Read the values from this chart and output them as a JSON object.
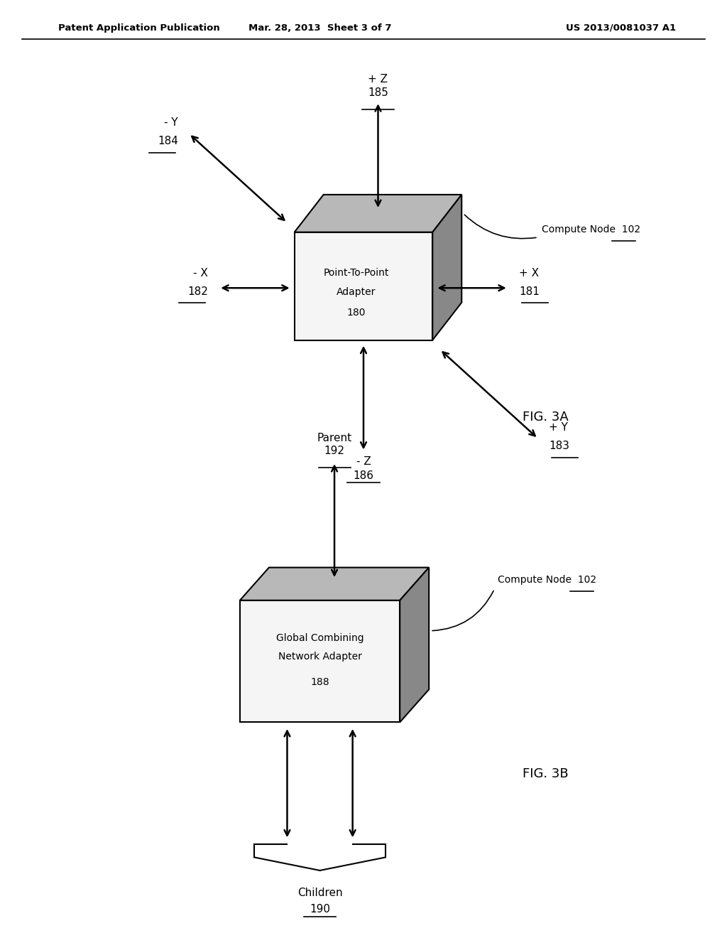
{
  "bg_color": "#ffffff",
  "header_left": "Patent Application Publication",
  "header_mid": "Mar. 28, 2013  Sheet 3 of 7",
  "header_right": "US 2013/0081037 A1",
  "top_color": "#b8b8b8",
  "side_color": "#888888",
  "face_color": "#f5f5f5",
  "fig3a": {
    "label": "FIG. 3A",
    "bx": 0.5,
    "by": 0.695,
    "bw": 0.19,
    "bh": 0.115,
    "ox": 0.04,
    "oy": 0.04,
    "box_line1": "Point-To-Point",
    "box_line2": "Adapter",
    "box_num": "180",
    "compute_node_label": "Compute Node",
    "compute_node_num": "102",
    "pZ_label": "+ Z",
    "pZ_num": "185",
    "mZ_label": "- Z",
    "mZ_num": "186",
    "pX_label": "+ X",
    "pX_num": "181",
    "mX_label": "- X",
    "mX_num": "182",
    "pY_label": "+ Y",
    "pY_num": "183",
    "mY_label": "- Y",
    "mY_num": "184"
  },
  "fig3b": {
    "label": "FIG. 3B",
    "bx": 0.44,
    "by": 0.295,
    "bw": 0.22,
    "bh": 0.13,
    "ox": 0.04,
    "oy": 0.035,
    "box_line1": "Global Combining",
    "box_line2": "Network Adapter",
    "box_num": "188",
    "compute_node_label": "Compute Node",
    "compute_node_num": "102",
    "parent_label": "Parent",
    "parent_num": "192",
    "children_label": "Children",
    "children_num": "190"
  }
}
